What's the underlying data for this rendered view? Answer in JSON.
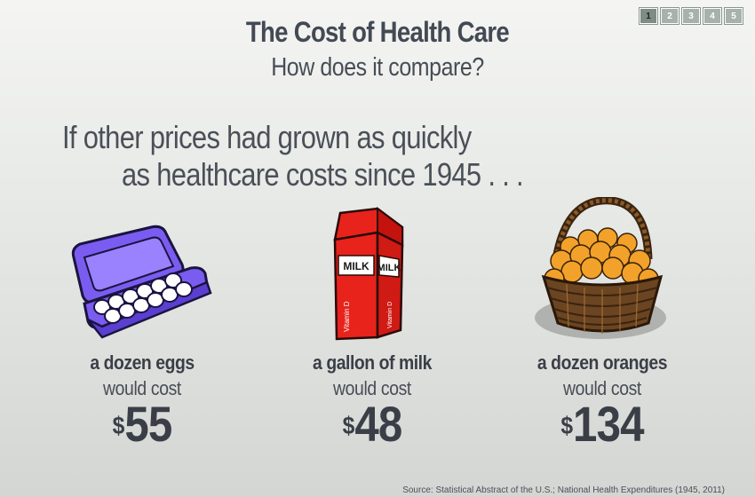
{
  "header": {
    "title": "The Cost of Health Care",
    "subtitle": "How does it compare?"
  },
  "pagination": [
    "1",
    "2",
    "3",
    "4",
    "5"
  ],
  "pagination_active": "1",
  "intro": {
    "line1": "If other prices had grown as quickly",
    "line2": "as healthcare costs since 1945 . . ."
  },
  "items": [
    {
      "name": "a dozen eggs",
      "would": "would cost",
      "currency": "$",
      "amount": "55",
      "icon": "egg-carton-icon"
    },
    {
      "name": "a gallon of milk",
      "would": "would cost",
      "currency": "$",
      "amount": "48",
      "icon": "milk-carton-icon"
    },
    {
      "name": "a dozen oranges",
      "would": "would cost",
      "currency": "$",
      "amount": "134",
      "icon": "orange-basket-icon"
    }
  ],
  "illustration_text": {
    "milk_label": "MILK",
    "vitamin_label": "Vitamin D"
  },
  "colors": {
    "text": "#3a3f47",
    "carton": "#7b5cf0",
    "milk_red": "#e8231c",
    "orange": "#f2a22a",
    "basket": "#6b4421"
  },
  "footer": {
    "source": "Source: Statistical Abstract of the U.S.; National Health Expenditures (1945, 2011)"
  }
}
